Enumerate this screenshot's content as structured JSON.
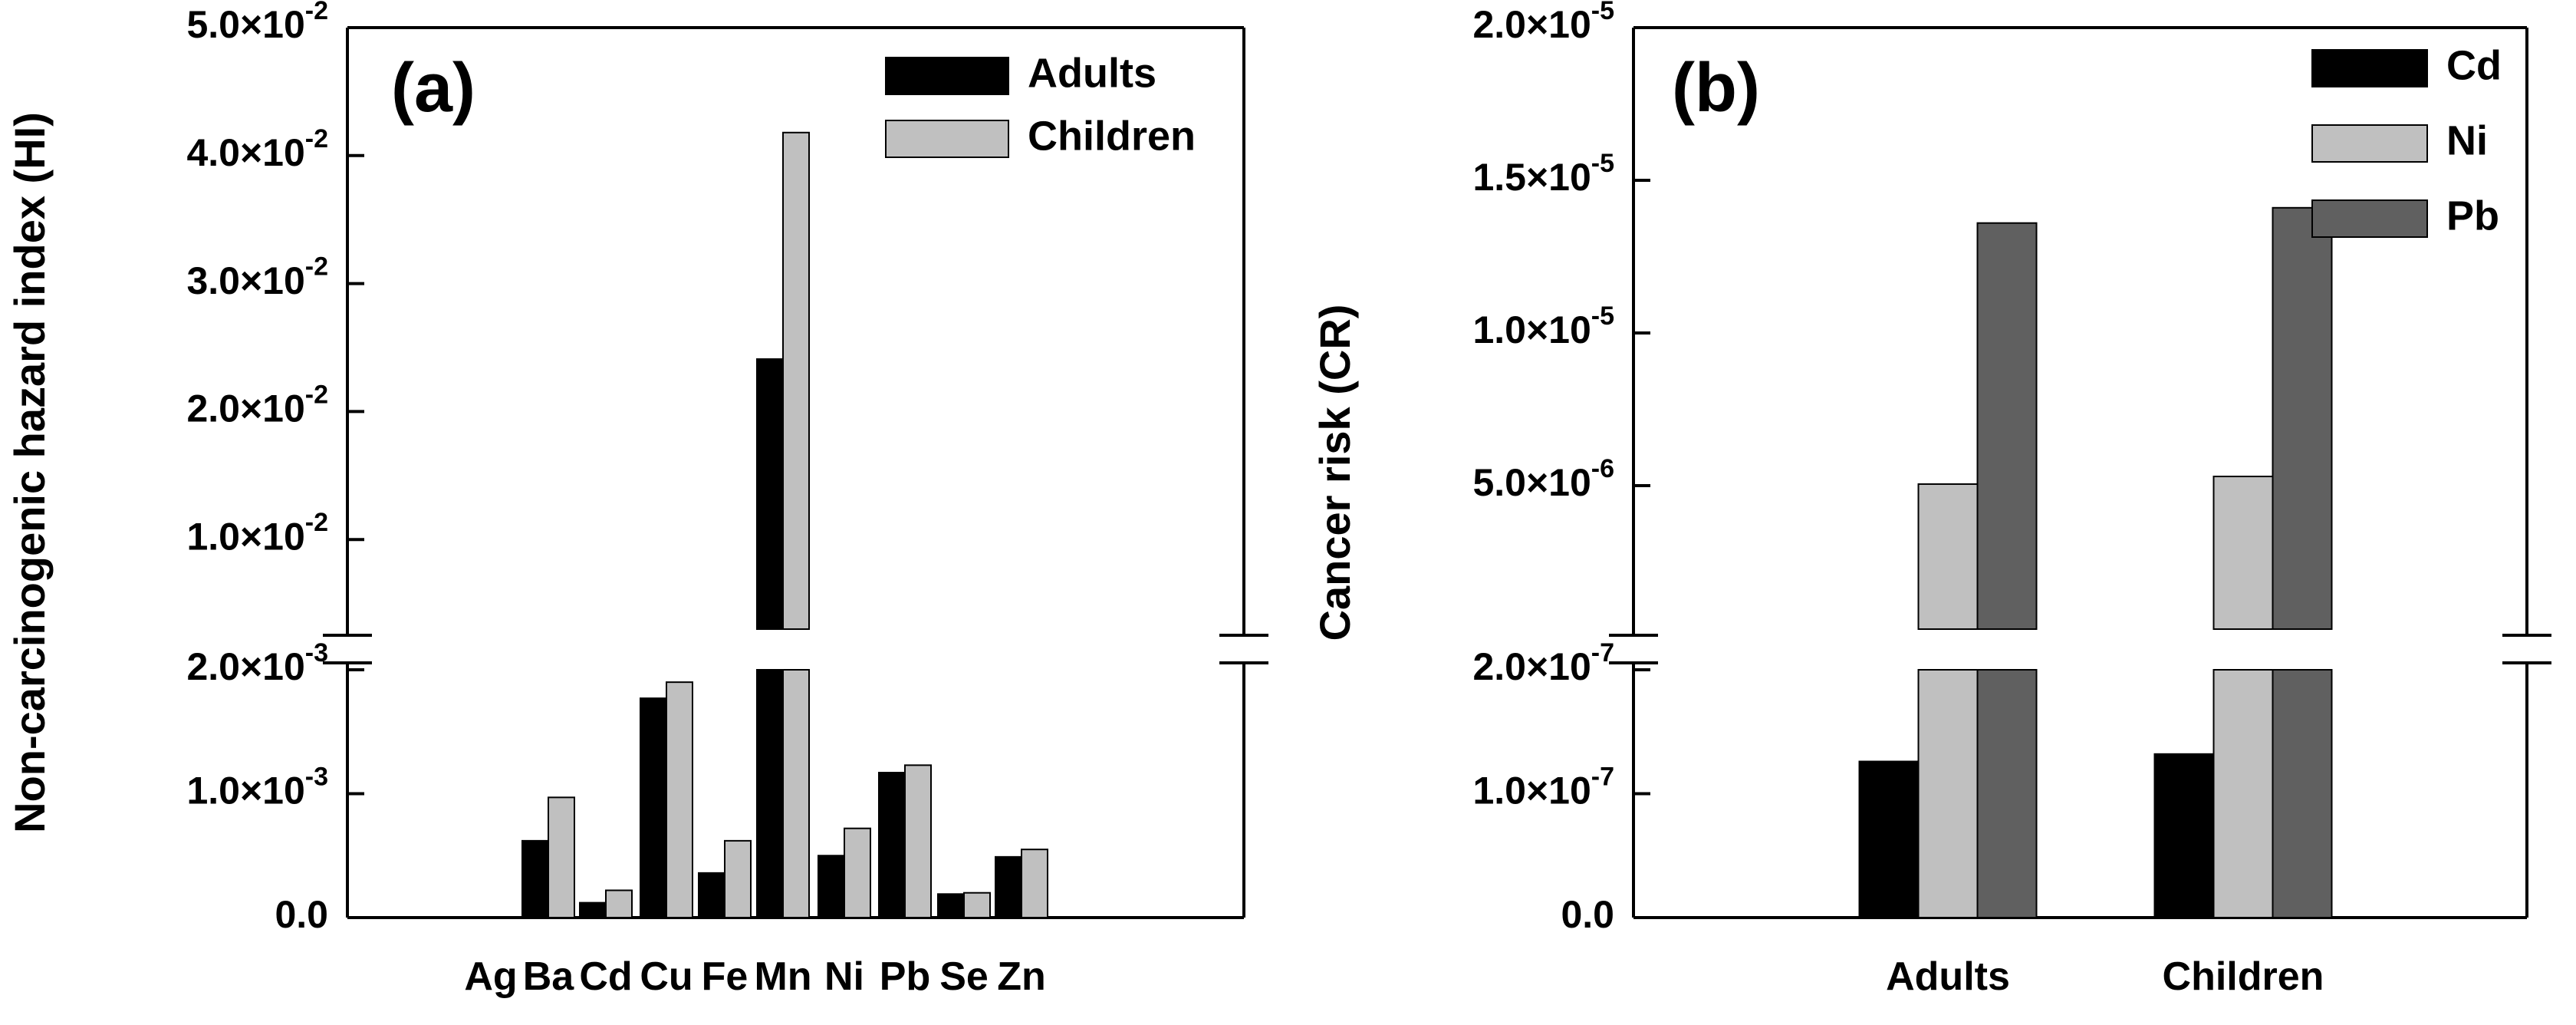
{
  "chart_data": [
    {
      "panel": "(a)",
      "type": "bar",
      "ylabel": "Non-carcinogenic hazard index (HI)",
      "broken_axis": true,
      "lower_range": [
        0,
        0.002
      ],
      "upper_range": [
        0.003,
        0.05
      ],
      "categories": [
        "Ag",
        "Ba",
        "Cd",
        "Cu",
        "Fe",
        "Mn",
        "Ni",
        "Pb",
        "Se",
        "Zn"
      ],
      "series": [
        {
          "name": "Adults",
          "color": "#000000",
          "values": [
            0,
            0.00062,
            0.00012,
            0.00177,
            0.00036,
            0.0241,
            0.0005,
            0.00117,
            0.00019,
            0.00049
          ]
        },
        {
          "name": "Children",
          "color": "#c0c0c0",
          "values": [
            0,
            0.00097,
            0.00022,
            0.0019,
            0.00062,
            0.0418,
            0.00072,
            0.00123,
            0.0002,
            0.00055
          ]
        }
      ],
      "lower_ticks": [
        {
          "value": 0,
          "label": "0.0"
        },
        {
          "value": 0.001,
          "label": "1.0×10",
          "exp": "-3"
        },
        {
          "value": 0.002,
          "label": "2.0×10",
          "exp": "-3"
        }
      ],
      "upper_ticks": [
        {
          "value": 0.01,
          "label": "1.0×10",
          "exp": "-2"
        },
        {
          "value": 0.02,
          "label": "2.0×10",
          "exp": "-2"
        },
        {
          "value": 0.03,
          "label": "3.0×10",
          "exp": "-2"
        },
        {
          "value": 0.04,
          "label": "4.0×10",
          "exp": "-2"
        },
        {
          "value": 0.05,
          "label": "5.0×10",
          "exp": "-2"
        }
      ],
      "legend": [
        "Adults",
        "Children"
      ]
    },
    {
      "panel": "(b)",
      "type": "bar",
      "ylabel": "Cancer risk (CR)",
      "broken_axis": true,
      "lower_range": [
        0,
        2e-07
      ],
      "upper_range": [
        3e-07,
        2e-05
      ],
      "categories": [
        "Adults",
        "Children"
      ],
      "series": [
        {
          "name": "Cd",
          "color": "#000000",
          "values": [
            1.26e-07,
            1.32e-07
          ]
        },
        {
          "name": "Ni",
          "color": "#c0c0c0",
          "values": [
            5.05e-06,
            5.3e-06
          ]
        },
        {
          "name": "Pb",
          "color": "#606060",
          "values": [
            1.36e-05,
            1.41e-05
          ]
        }
      ],
      "lower_ticks": [
        {
          "value": 0,
          "label": "0.0"
        },
        {
          "value": 1e-07,
          "label": "1.0×10",
          "exp": "-7"
        },
        {
          "value": 2e-07,
          "label": "2.0×10",
          "exp": "-7"
        }
      ],
      "upper_ticks": [
        {
          "value": 5e-06,
          "label": "5.0×10",
          "exp": "-6"
        },
        {
          "value": 1e-05,
          "label": "1.0×10",
          "exp": "-5"
        },
        {
          "value": 1.5e-05,
          "label": "1.5×10",
          "exp": "-5"
        },
        {
          "value": 2e-05,
          "label": "2.0×10",
          "exp": "-5"
        }
      ],
      "legend": [
        "Cd",
        "Ni",
        "Pb"
      ]
    }
  ]
}
